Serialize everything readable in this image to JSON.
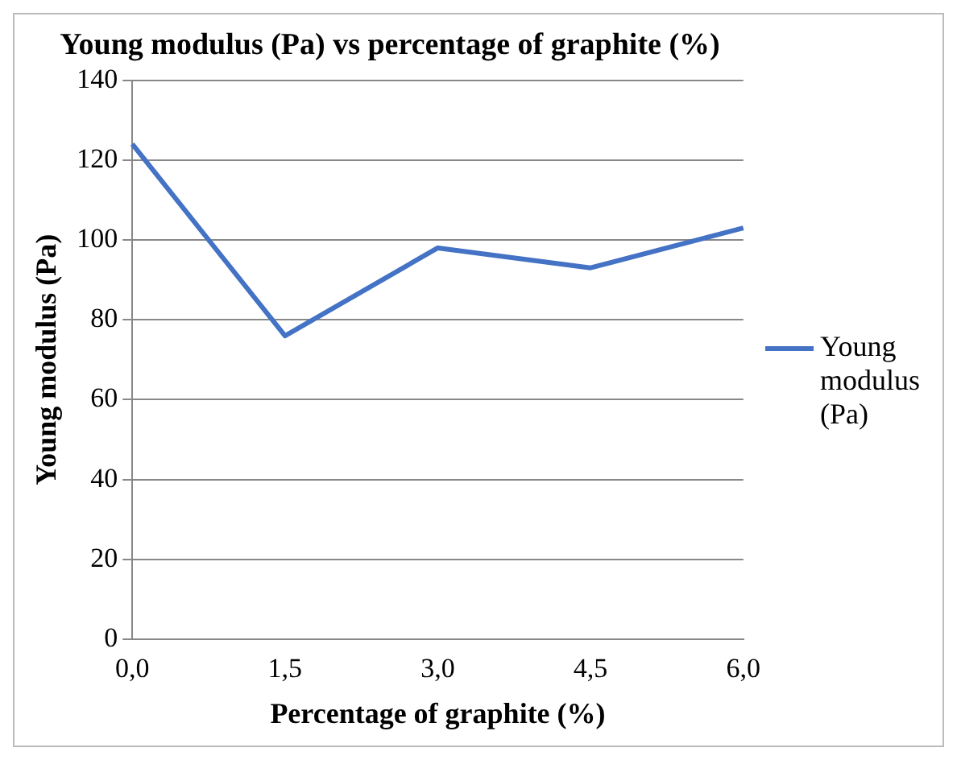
{
  "chart_data": {
    "type": "line",
    "title": "Young modulus (Pa) vs percentage of graphite (%)",
    "xlabel": "Percentage of graphite (%)",
    "ylabel": "Young modulus (Pa)",
    "categories": [
      "0,0",
      "1,5",
      "3,0",
      "4,5",
      "6,0"
    ],
    "series": [
      {
        "name": "Young modulus (Pa)",
        "color": "#4472c4",
        "values": [
          124,
          76,
          98,
          93,
          103
        ]
      }
    ],
    "ylim": [
      0,
      140
    ],
    "yticks": [
      0,
      20,
      40,
      60,
      80,
      100,
      120,
      140
    ],
    "grid": "y",
    "legend": "right",
    "marker": "none"
  }
}
